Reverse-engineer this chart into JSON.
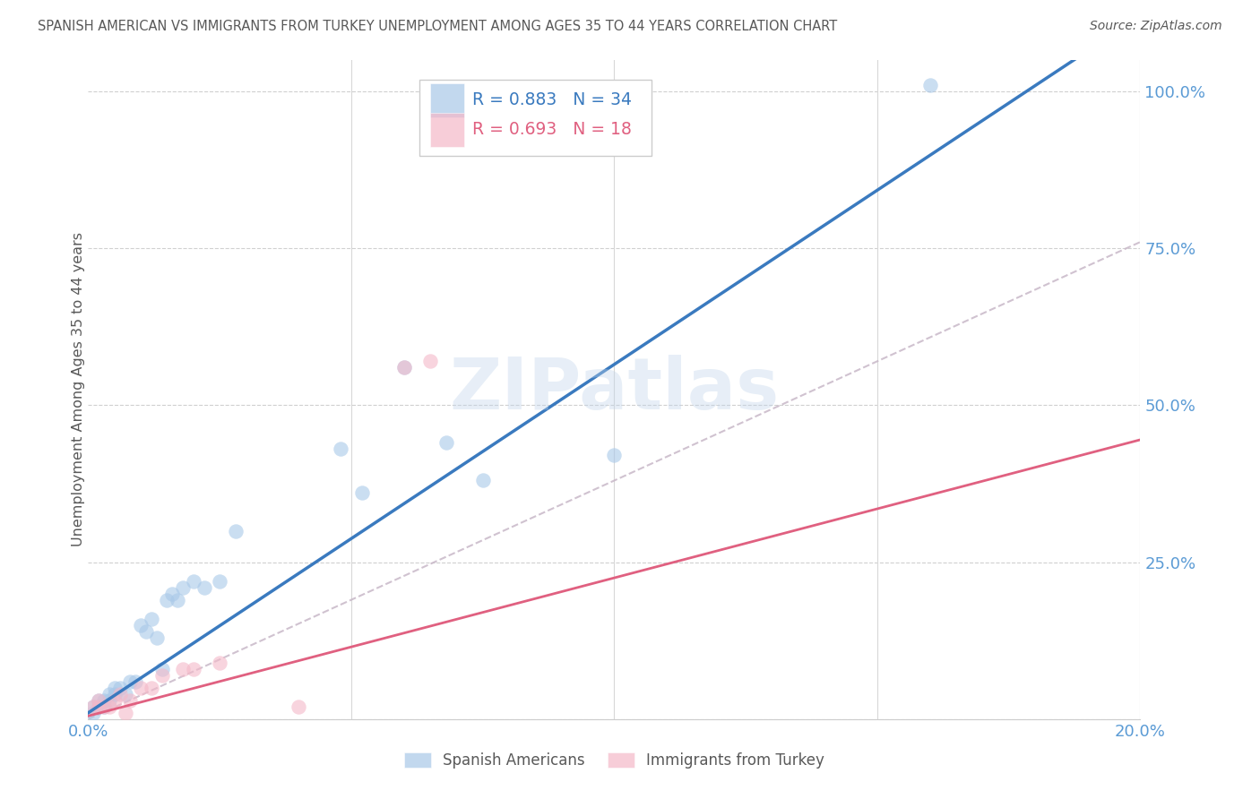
{
  "title": "SPANISH AMERICAN VS IMMIGRANTS FROM TURKEY UNEMPLOYMENT AMONG AGES 35 TO 44 YEARS CORRELATION CHART",
  "source": "Source: ZipAtlas.com",
  "ylabel": "Unemployment Among Ages 35 to 44 years",
  "xlim": [
    0.0,
    0.2
  ],
  "ylim": [
    0.0,
    1.05
  ],
  "yticks": [
    0.0,
    0.25,
    0.5,
    0.75,
    1.0
  ],
  "ytick_labels": [
    "",
    "25.0%",
    "50.0%",
    "75.0%",
    "100.0%"
  ],
  "xticks": [
    0.0,
    0.05,
    0.1,
    0.15,
    0.2
  ],
  "xtick_labels": [
    "0.0%",
    "",
    "",
    "",
    "20.0%"
  ],
  "blue_scatter": [
    [
      0.001,
      0.01
    ],
    [
      0.001,
      0.02
    ],
    [
      0.002,
      0.02
    ],
    [
      0.002,
      0.03
    ],
    [
      0.003,
      0.02
    ],
    [
      0.003,
      0.03
    ],
    [
      0.004,
      0.03
    ],
    [
      0.004,
      0.04
    ],
    [
      0.005,
      0.04
    ],
    [
      0.005,
      0.05
    ],
    [
      0.006,
      0.05
    ],
    [
      0.007,
      0.04
    ],
    [
      0.008,
      0.06
    ],
    [
      0.009,
      0.06
    ],
    [
      0.01,
      0.15
    ],
    [
      0.011,
      0.14
    ],
    [
      0.012,
      0.16
    ],
    [
      0.013,
      0.13
    ],
    [
      0.014,
      0.08
    ],
    [
      0.015,
      0.19
    ],
    [
      0.016,
      0.2
    ],
    [
      0.017,
      0.19
    ],
    [
      0.018,
      0.21
    ],
    [
      0.02,
      0.22
    ],
    [
      0.022,
      0.21
    ],
    [
      0.025,
      0.22
    ],
    [
      0.028,
      0.3
    ],
    [
      0.048,
      0.43
    ],
    [
      0.052,
      0.36
    ],
    [
      0.06,
      0.56
    ],
    [
      0.068,
      0.44
    ],
    [
      0.075,
      0.38
    ],
    [
      0.1,
      0.42
    ],
    [
      0.16,
      1.01
    ]
  ],
  "pink_scatter": [
    [
      0.001,
      0.02
    ],
    [
      0.002,
      0.02
    ],
    [
      0.002,
      0.03
    ],
    [
      0.003,
      0.02
    ],
    [
      0.004,
      0.02
    ],
    [
      0.005,
      0.03
    ],
    [
      0.006,
      0.04
    ],
    [
      0.007,
      0.01
    ],
    [
      0.008,
      0.03
    ],
    [
      0.01,
      0.05
    ],
    [
      0.012,
      0.05
    ],
    [
      0.014,
      0.07
    ],
    [
      0.018,
      0.08
    ],
    [
      0.02,
      0.08
    ],
    [
      0.025,
      0.09
    ],
    [
      0.04,
      0.02
    ],
    [
      0.06,
      0.56
    ],
    [
      0.065,
      0.57
    ]
  ],
  "blue_color": "#a8c8e8",
  "pink_color": "#f4b8c8",
  "blue_line_color": "#3a7abf",
  "pink_line_color": "#e06080",
  "diagonal_color": "#c8b8c8",
  "blue_line_slope": 5.55,
  "blue_line_intercept": 0.01,
  "pink_line_slope": 2.2,
  "pink_line_intercept": 0.005,
  "diag_slope": 3.8,
  "diag_intercept": 0.0,
  "R_blue": 0.883,
  "N_blue": 34,
  "R_pink": 0.693,
  "N_pink": 18,
  "watermark": "ZIPatlas",
  "background_color": "#ffffff",
  "axis_color": "#5b9bd5",
  "title_color": "#595959",
  "source_color": "#595959"
}
